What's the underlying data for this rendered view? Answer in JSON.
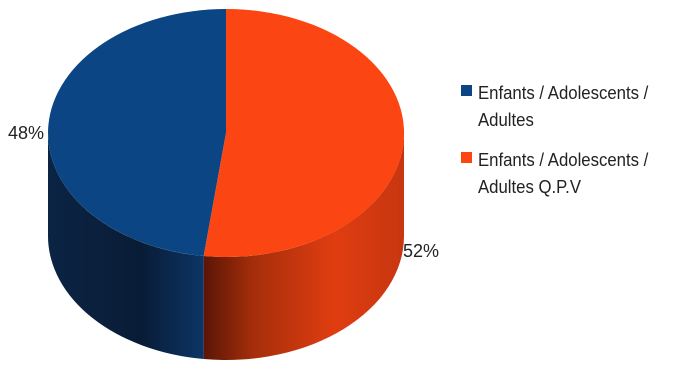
{
  "chart_data": {
    "type": "pie",
    "style": "3d-cylinder",
    "title": "",
    "categories": [
      "Enfants / Adolescents / Adultes",
      "Enfants / Adolescents / Adultes Q.P.V"
    ],
    "values": [
      48,
      52
    ],
    "labels": [
      "48%",
      "52%"
    ],
    "colors": [
      "#0b4583",
      "#fb4512"
    ],
    "legend_position": "right"
  }
}
